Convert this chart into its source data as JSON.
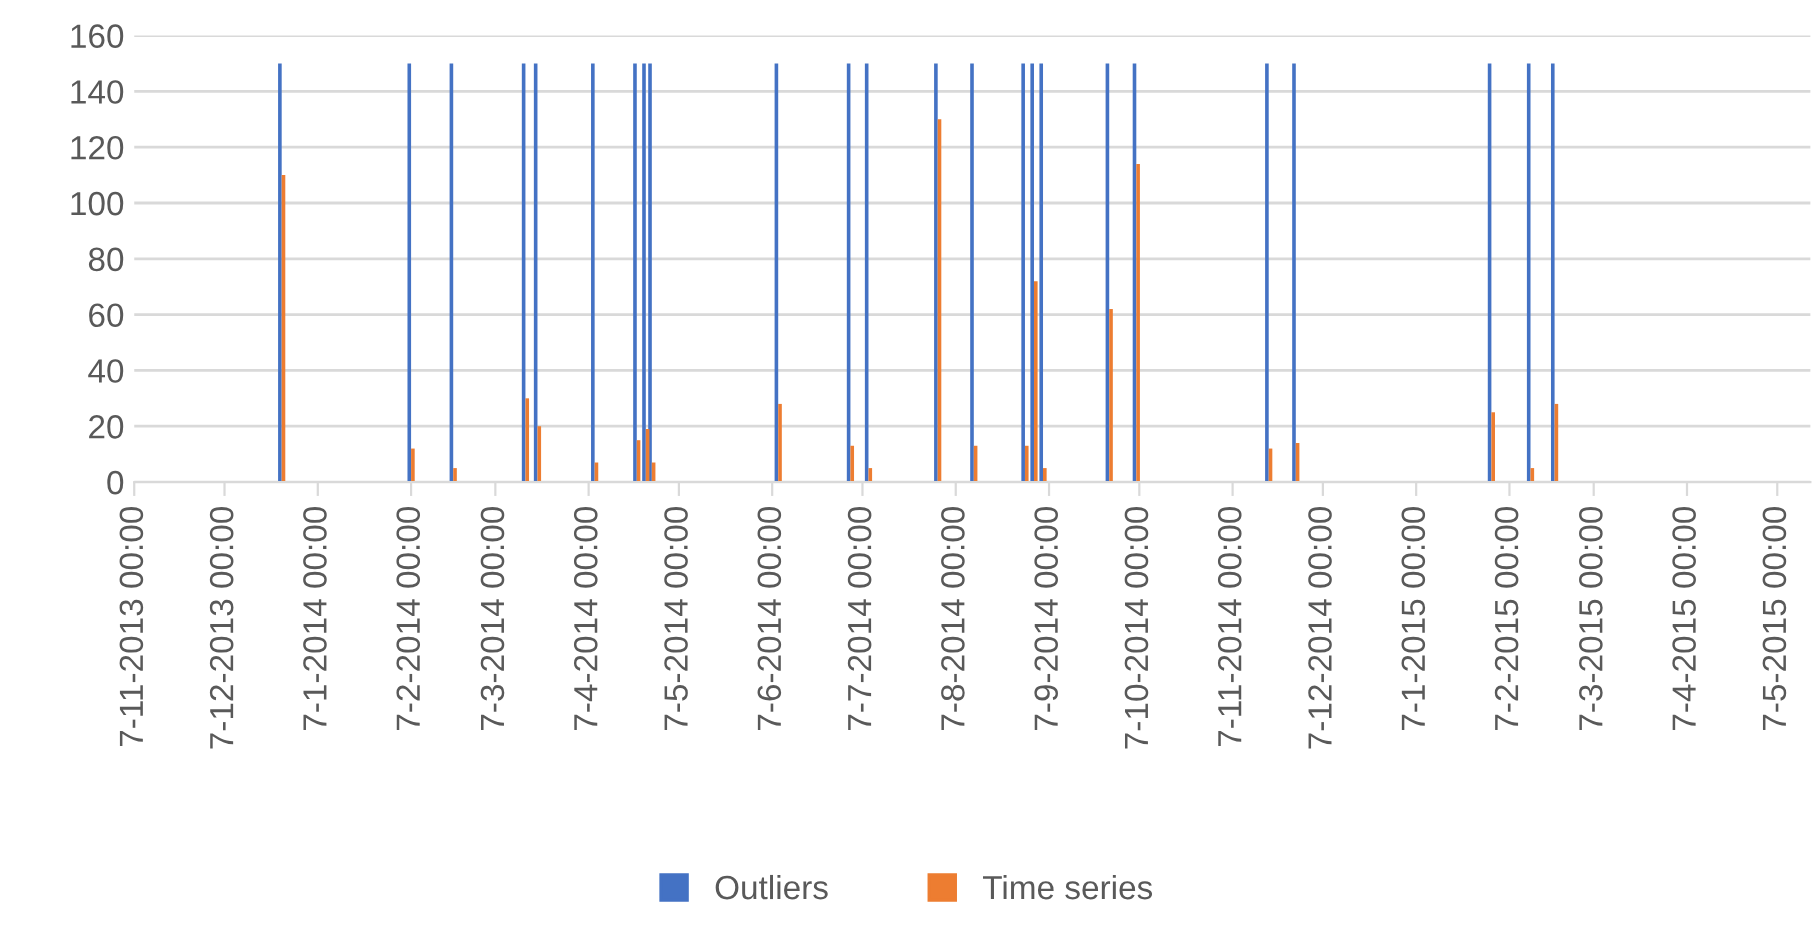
{
  "chart_data": {
    "type": "bar",
    "x": [
      "2013-12-26",
      "2014-02-07",
      "2014-02-21",
      "2014-03-17",
      "2014-03-21",
      "2014-04-09",
      "2014-04-23",
      "2014-04-26",
      "2014-04-28",
      "2014-06-09",
      "2014-07-03",
      "2014-07-09",
      "2014-08-01",
      "2014-08-13",
      "2014-08-30",
      "2014-09-02",
      "2014-09-05",
      "2014-09-27",
      "2014-10-06",
      "2014-11-19",
      "2014-11-28",
      "2015-02-01",
      "2015-02-14",
      "2015-02-22"
    ],
    "series": [
      {
        "name": "Outliers",
        "color": "#4472c4",
        "values": [
          150,
          150,
          150,
          150,
          150,
          150,
          150,
          150,
          150,
          150,
          150,
          150,
          150,
          150,
          150,
          150,
          150,
          150,
          150,
          150,
          150,
          150,
          150,
          150
        ]
      },
      {
        "name": "Time series",
        "color": "#ed7d31",
        "values": [
          110,
          12,
          5,
          30,
          20,
          7,
          15,
          19,
          7,
          28,
          13,
          5,
          130,
          13,
          13,
          72,
          5,
          62,
          114,
          12,
          14,
          25,
          5,
          28
        ]
      }
    ],
    "xlim": [
      "2013-11-07",
      "2015-05-18"
    ],
    "xticks": [
      {
        "value": "2013-11-07",
        "label": "7-11-2013 00:00"
      },
      {
        "value": "2013-12-07",
        "label": "7-12-2013 00:00"
      },
      {
        "value": "2014-01-07",
        "label": "7-1-2014 00:00"
      },
      {
        "value": "2014-02-07",
        "label": "7-2-2014 00:00"
      },
      {
        "value": "2014-03-07",
        "label": "7-3-2014 00:00"
      },
      {
        "value": "2014-04-07",
        "label": "7-4-2014 00:00"
      },
      {
        "value": "2014-05-07",
        "label": "7-5-2014 00:00"
      },
      {
        "value": "2014-06-07",
        "label": "7-6-2014 00:00"
      },
      {
        "value": "2014-07-07",
        "label": "7-7-2014 00:00"
      },
      {
        "value": "2014-08-07",
        "label": "7-8-2014 00:00"
      },
      {
        "value": "2014-09-07",
        "label": "7-9-2014 00:00"
      },
      {
        "value": "2014-10-07",
        "label": "7-10-2014 00:00"
      },
      {
        "value": "2014-11-07",
        "label": "7-11-2014 00:00"
      },
      {
        "value": "2014-12-07",
        "label": "7-12-2014 00:00"
      },
      {
        "value": "2015-01-07",
        "label": "7-1-2015 00:00"
      },
      {
        "value": "2015-02-07",
        "label": "7-2-2015 00:00"
      },
      {
        "value": "2015-03-07",
        "label": "7-3-2015 00:00"
      },
      {
        "value": "2015-04-07",
        "label": "7-4-2015 00:00"
      },
      {
        "value": "2015-05-07",
        "label": "7-5-2015 00:00"
      }
    ],
    "ylim": [
      0,
      160
    ],
    "yticks": [
      0,
      20,
      40,
      60,
      80,
      100,
      120,
      140,
      160
    ],
    "grid": "y",
    "legend": "bottom"
  }
}
